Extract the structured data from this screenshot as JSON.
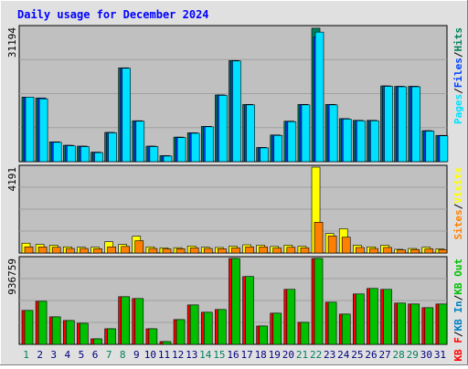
{
  "title": "Daily usage for December 2024",
  "colors": {
    "title": "#0000ff",
    "background": "#c0c0c0",
    "frame": "#e0e0e0",
    "hits": "#00805c",
    "files": "#0040ff",
    "pages": "#00e0ff",
    "visits": "#ffff00",
    "sites": "#ff8000",
    "kb_in": "#0080c0",
    "kb_out": "#00c000",
    "kb_f": "#ff0000",
    "weekend_label": "#00805c",
    "weekday_label": "#000080"
  },
  "chart_data": [
    {
      "type": "bar",
      "panel": "top",
      "max_label": "31194",
      "ylim": [
        0,
        31194
      ],
      "categories": [
        "1",
        "2",
        "3",
        "4",
        "5",
        "6",
        "7",
        "8",
        "9",
        "10",
        "11",
        "12",
        "13",
        "14",
        "15",
        "16",
        "17",
        "18",
        "19",
        "20",
        "21",
        "22",
        "23",
        "24",
        "25",
        "26",
        "27",
        "28",
        "29",
        "30",
        "31"
      ],
      "weekend_days": [
        "1",
        "7",
        "8",
        "14",
        "15",
        "21",
        "22",
        "28",
        "29"
      ],
      "side_labels": [
        {
          "text": "Pages",
          "color": "#00e0ff"
        },
        {
          "text": "/",
          "color": "#000000"
        },
        {
          "text": "Files",
          "color": "#0040ff"
        },
        {
          "text": "/",
          "color": "#000000"
        },
        {
          "text": "Hits",
          "color": "#00805c"
        }
      ],
      "series": [
        {
          "name": "Hits",
          "color": "#00805c",
          "values": [
            15000,
            14800,
            4600,
            3800,
            3600,
            2200,
            6800,
            21800,
            9500,
            3600,
            1400,
            5700,
            6700,
            8200,
            15500,
            23500,
            13300,
            3300,
            6200,
            9400,
            13300,
            31000,
            13300,
            10000,
            9600,
            9600,
            17600,
            17500,
            17500,
            7200,
            6100
          ]
        },
        {
          "name": "Files",
          "color": "#0040ff",
          "values": [
            15000,
            14800,
            4600,
            3800,
            3600,
            2200,
            6800,
            21800,
            9500,
            3600,
            1400,
            5700,
            6700,
            8200,
            15500,
            23500,
            13300,
            3300,
            6200,
            9400,
            13300,
            29000,
            13300,
            10000,
            9600,
            9600,
            17600,
            17500,
            17500,
            7200,
            6100
          ]
        },
        {
          "name": "Pages",
          "color": "#00e0ff",
          "values": [
            15000,
            14600,
            4500,
            3700,
            3500,
            2100,
            6700,
            21700,
            9400,
            3500,
            1300,
            5600,
            6600,
            8100,
            15400,
            23400,
            13200,
            3200,
            6100,
            9300,
            13200,
            30100,
            13200,
            9900,
            9500,
            9500,
            17500,
            17400,
            17400,
            7100,
            6000
          ]
        }
      ]
    },
    {
      "type": "bar",
      "panel": "middle",
      "max_label": "4191",
      "ylim": [
        0,
        4191
      ],
      "categories": [
        "1",
        "2",
        "3",
        "4",
        "5",
        "6",
        "7",
        "8",
        "9",
        "10",
        "11",
        "12",
        "13",
        "14",
        "15",
        "16",
        "17",
        "18",
        "19",
        "20",
        "21",
        "22",
        "23",
        "24",
        "25",
        "26",
        "27",
        "28",
        "29",
        "30",
        "31"
      ],
      "side_labels": [
        {
          "text": "Sites",
          "color": "#ff8000"
        },
        {
          "text": "/",
          "color": "#000000"
        },
        {
          "text": "Visits",
          "color": "#ffff00"
        }
      ],
      "series": [
        {
          "name": "Visits",
          "color": "#ffff00",
          "values": [
            480,
            420,
            380,
            300,
            280,
            280,
            550,
            420,
            820,
            300,
            250,
            260,
            340,
            280,
            270,
            330,
            400,
            380,
            320,
            380,
            330,
            4191,
            950,
            1180,
            380,
            300,
            380,
            180,
            220,
            280,
            200
          ]
        },
        {
          "name": "Sites",
          "color": "#ff8000",
          "values": [
            300,
            300,
            280,
            220,
            220,
            210,
            300,
            320,
            600,
            220,
            200,
            210,
            250,
            220,
            210,
            250,
            300,
            300,
            240,
            280,
            250,
            1500,
            830,
            770,
            270,
            220,
            270,
            150,
            170,
            200,
            160
          ]
        }
      ]
    },
    {
      "type": "bar",
      "panel": "bottom",
      "max_label": "936759",
      "ylim": [
        0,
        936759
      ],
      "categories": [
        "1",
        "2",
        "3",
        "4",
        "5",
        "6",
        "7",
        "8",
        "9",
        "10",
        "11",
        "12",
        "13",
        "14",
        "15",
        "16",
        "17",
        "18",
        "19",
        "20",
        "21",
        "22",
        "23",
        "24",
        "25",
        "26",
        "27",
        "28",
        "29",
        "30",
        "31"
      ],
      "side_labels": [
        {
          "text": "KB F",
          "color": "#ff0000"
        },
        {
          "text": "/",
          "color": "#000000"
        },
        {
          "text": "KB In",
          "color": "#0080c0"
        },
        {
          "text": "/",
          "color": "#000000"
        },
        {
          "text": "KB Out",
          "color": "#00c000"
        }
      ],
      "series": [
        {
          "name": "KB F",
          "color": "#ff0000",
          "values": [
            370000,
            470000,
            300000,
            260000,
            230000,
            60000,
            170000,
            520000,
            500000,
            170000,
            30000,
            270000,
            430000,
            350000,
            380000,
            936759,
            740000,
            200000,
            340000,
            600000,
            240000,
            936759,
            460000,
            330000,
            550000,
            610000,
            600000,
            450000,
            440000,
            400000,
            440000
          ]
        },
        {
          "name": "KB Out",
          "color": "#00c000",
          "values": [
            370000,
            470000,
            300000,
            260000,
            230000,
            60000,
            170000,
            520000,
            500000,
            170000,
            30000,
            270000,
            430000,
            350000,
            380000,
            936759,
            740000,
            200000,
            340000,
            600000,
            240000,
            936759,
            460000,
            330000,
            550000,
            610000,
            600000,
            450000,
            440000,
            400000,
            440000
          ]
        }
      ]
    }
  ]
}
